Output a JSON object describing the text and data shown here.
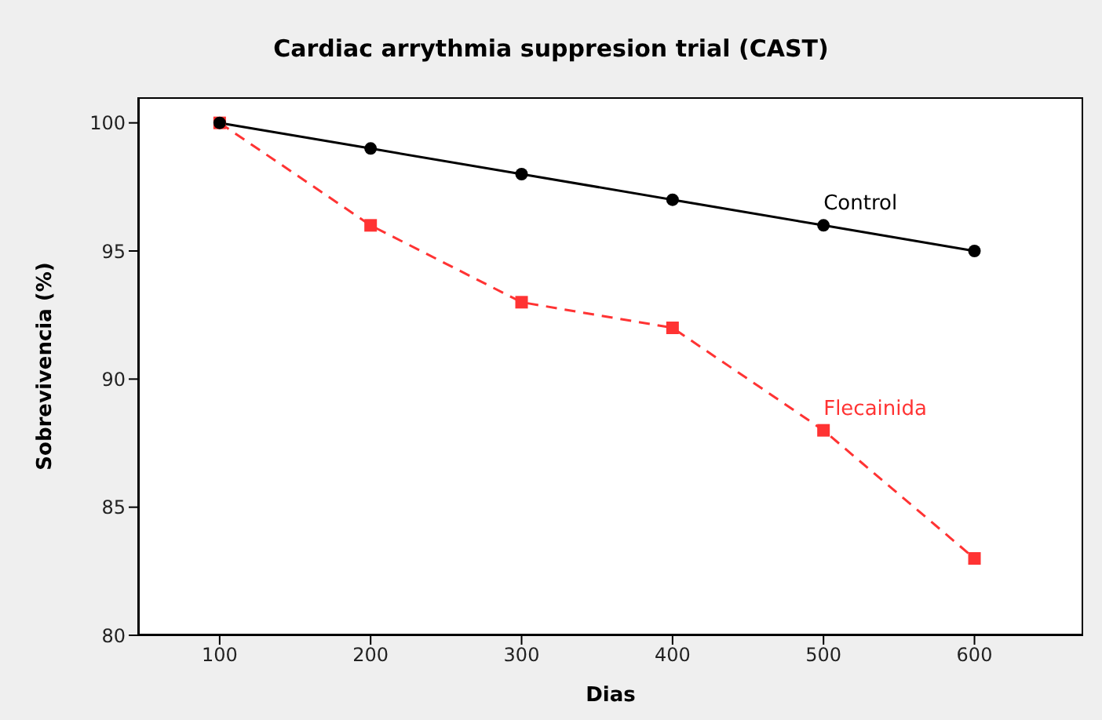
{
  "chart_data": {
    "type": "line",
    "title": "Cardiac arrythmia suppresion trial (CAST)",
    "xlabel": "Dias",
    "ylabel": "Sobrevivencia (%)",
    "x": [
      100,
      200,
      300,
      400,
      500,
      600
    ],
    "series": [
      {
        "name": "Control",
        "color": "#000000",
        "values": [
          100,
          99,
          98,
          97,
          96,
          95
        ],
        "marker": "circle",
        "line_style": "solid"
      },
      {
        "name": "Flecainida",
        "color": "#ff3333",
        "values": [
          100,
          96,
          93,
          92,
          88,
          83
        ],
        "marker": "square",
        "line_style": "dashed"
      }
    ],
    "xlim": [
      46,
      672
    ],
    "xticks": [
      100,
      200,
      300,
      400,
      500,
      600
    ],
    "ylim": [
      80,
      101
    ],
    "yticks": [
      80,
      85,
      90,
      95,
      100
    ],
    "grid": false,
    "legend": false
  }
}
